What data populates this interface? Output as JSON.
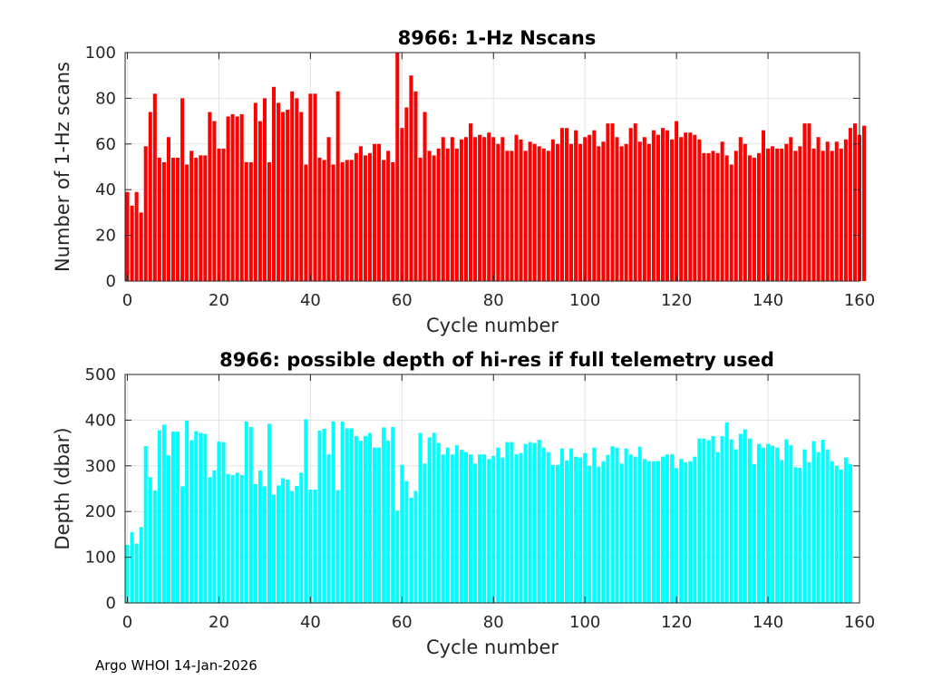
{
  "footer": "Argo WHOI 14-Jan-2026",
  "chart_data": [
    {
      "type": "bar",
      "title": "8966: 1-Hz Nscans",
      "xlabel": "Cycle number",
      "ylabel": "Number of 1-Hz scans",
      "xlim": [
        -0.5,
        160
      ],
      "ylim": [
        0,
        100
      ],
      "xticks": [
        0,
        20,
        40,
        60,
        80,
        100,
        120,
        140,
        160
      ],
      "yticks": [
        0,
        20,
        40,
        60,
        80,
        100
      ],
      "grid": true,
      "color": "#ff0000",
      "x_start": 0,
      "values": [
        39,
        33,
        39,
        30,
        59,
        74,
        82,
        54,
        52,
        63,
        54,
        54,
        80,
        51,
        57,
        54,
        55,
        55,
        74,
        70,
        58,
        58,
        72,
        73,
        72,
        73,
        52,
        52,
        78,
        70,
        80,
        52,
        85,
        78,
        74,
        75,
        83,
        80,
        74,
        51,
        82,
        82,
        54,
        53,
        63,
        51,
        83,
        52,
        53,
        53,
        56,
        59,
        55,
        56,
        60,
        60,
        53,
        57,
        52,
        100,
        67,
        76,
        90,
        83,
        54,
        74,
        57,
        55,
        58,
        63,
        58,
        63,
        58,
        62,
        63,
        69,
        63,
        64,
        63,
        65,
        63,
        60,
        63,
        57,
        57,
        64,
        62,
        57,
        61,
        60,
        59,
        58,
        57,
        62,
        60,
        67,
        67,
        60,
        66,
        60,
        63,
        64,
        66,
        59,
        61,
        69,
        69,
        63,
        59,
        60,
        67,
        69,
        61,
        63,
        60,
        66,
        64,
        67,
        66,
        62,
        70,
        63,
        65,
        65,
        64,
        62,
        56,
        56,
        57,
        56,
        61,
        55,
        51,
        57,
        63,
        60,
        55,
        54,
        56,
        66,
        58,
        59,
        58,
        58,
        60,
        63,
        57,
        59,
        69,
        69,
        58,
        63,
        57,
        61,
        57,
        61,
        58,
        62,
        67,
        69,
        64,
        68
      ]
    },
    {
      "type": "bar",
      "title": "8966: possible depth of hi-res if full telemetry used",
      "xlabel": "Cycle number",
      "ylabel": "Depth (dbar)",
      "xlim": [
        -0.5,
        160
      ],
      "ylim": [
        0,
        500
      ],
      "xticks": [
        0,
        20,
        40,
        60,
        80,
        100,
        120,
        140,
        160
      ],
      "yticks": [
        0,
        100,
        200,
        300,
        400,
        500
      ],
      "grid": true,
      "color": "#00ffff",
      "x_start": 0,
      "values": [
        127,
        155,
        130,
        166,
        343,
        275,
        246,
        378,
        390,
        323,
        375,
        375,
        255,
        399,
        356,
        376,
        372,
        370,
        275,
        290,
        353,
        352,
        282,
        280,
        285,
        280,
        397,
        385,
        260,
        290,
        255,
        392,
        237,
        257,
        273,
        270,
        245,
        256,
        285,
        402,
        248,
        248,
        377,
        381,
        325,
        397,
        247,
        397,
        382,
        382,
        365,
        355,
        365,
        372,
        340,
        340,
        384,
        355,
        385,
        202,
        302,
        267,
        230,
        245,
        372,
        305,
        362,
        372,
        350,
        325,
        340,
        325,
        345,
        335,
        330,
        325,
        305,
        325,
        325,
        315,
        322,
        340,
        318,
        352,
        352,
        325,
        328,
        348,
        352,
        350,
        357,
        340,
        330,
        302,
        302,
        338,
        312,
        338,
        320,
        318,
        328,
        300,
        340,
        298,
        310,
        324,
        343,
        340,
        305,
        338,
        325,
        320,
        342,
        315,
        310,
        310,
        310,
        320,
        325,
        325,
        295,
        315,
        308,
        310,
        320,
        360,
        360,
        356,
        365,
        330,
        365,
        395,
        358,
        336,
        370,
        380,
        360,
        304,
        348,
        340,
        348,
        344,
        340,
        313,
        358,
        345,
        297,
        296,
        336,
        308,
        354,
        330,
        357,
        336,
        310,
        300,
        292,
        318,
        304
      ]
    }
  ]
}
